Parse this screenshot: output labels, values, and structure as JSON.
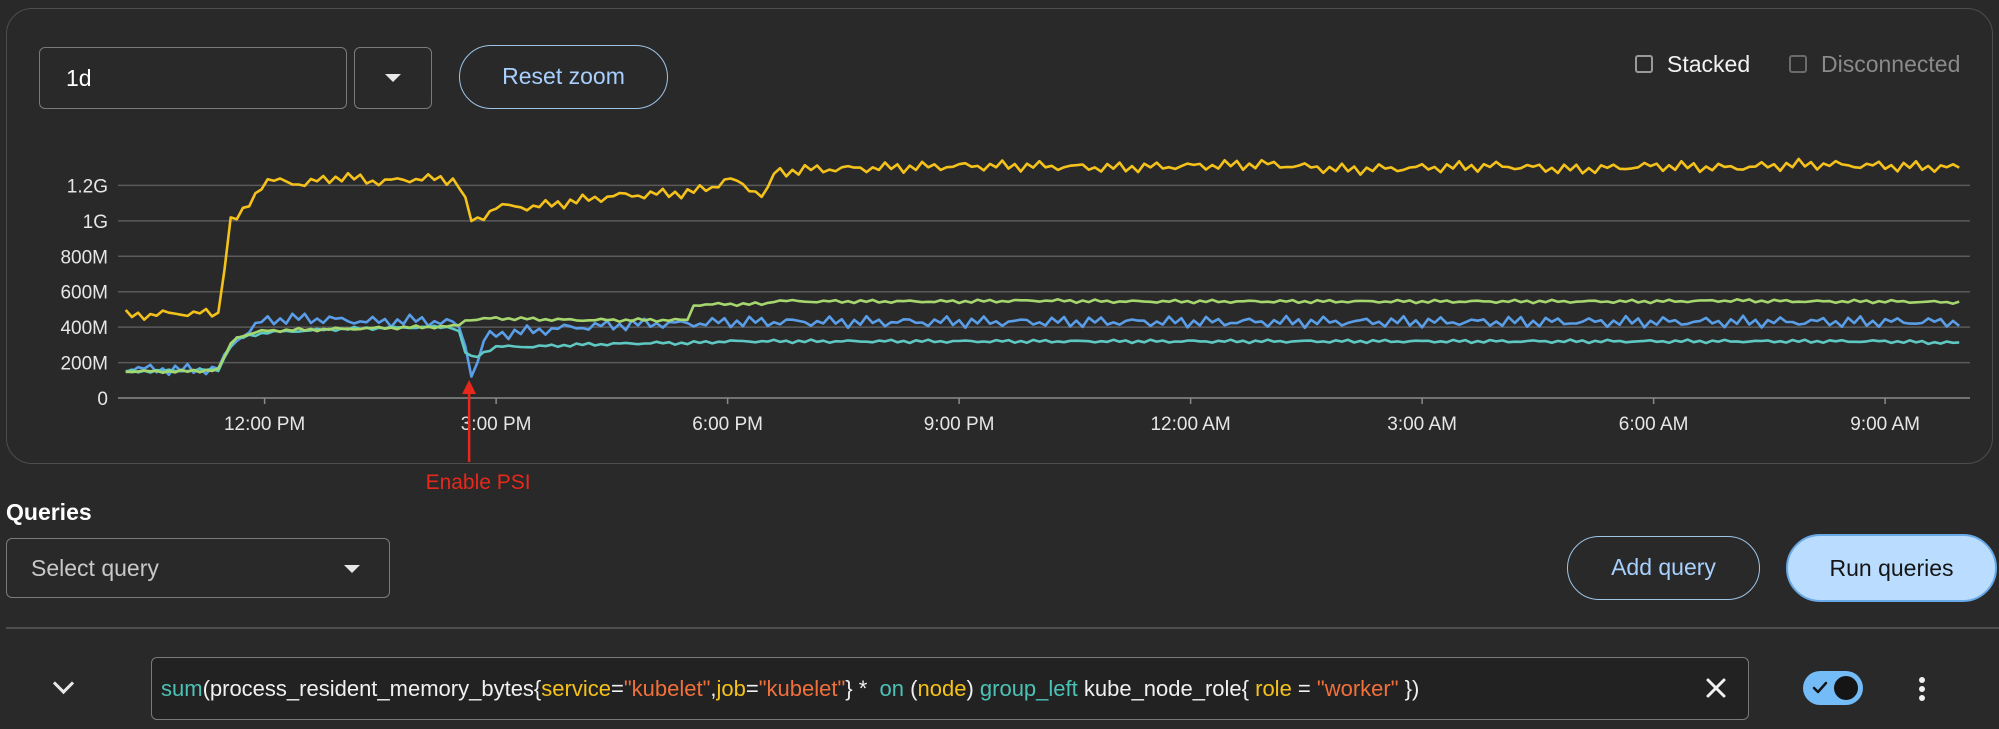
{
  "toolbar": {
    "time_range": "1d",
    "reset_zoom_label": "Reset zoom",
    "stacked_label": "Stacked",
    "disconnected_label": "Disconnected",
    "stacked_checked": false,
    "disconnected_checked": false
  },
  "chart_data": {
    "type": "line",
    "ylim": [
      0,
      1400000000
    ],
    "y_ticks": [
      0,
      200000000,
      400000000,
      600000000,
      800000000,
      1000000000,
      1200000000
    ],
    "y_tick_labels": [
      "0",
      "200M",
      "400M",
      "600M",
      "800M",
      "1G",
      "1.2G"
    ],
    "x_tick_labels": [
      "12:00 PM",
      "3:00 PM",
      "6:00 PM",
      "9:00 PM",
      "12:00 AM",
      "3:00 AM",
      "6:00 AM",
      "9:00 AM"
    ],
    "x_ticks_hours": [
      12,
      15,
      18,
      21,
      24,
      27,
      30,
      33
    ],
    "xlim_hours": [
      10.1,
      34.1
    ],
    "grid": true,
    "annotation": {
      "text": "Enable PSI",
      "x_hours": 14.65,
      "color": "#e8281b"
    },
    "series": [
      {
        "color": "#f4c21b",
        "x": [
          10.2,
          11.0,
          11.4,
          11.55,
          11.7,
          12.0,
          12.5,
          13.0,
          13.5,
          14.0,
          14.5,
          14.7,
          14.9,
          15.0,
          15.5,
          16.0,
          16.5,
          17.0,
          17.5,
          17.8,
          18.0,
          18.5,
          18.6,
          19.0,
          20.0,
          21.0,
          22.0,
          23.0,
          24.0,
          25.0,
          26.0,
          27.0,
          28.0,
          29.0,
          30.0,
          31.0,
          32.0,
          33.0,
          34.0
        ],
        "values": [
          465,
          480,
          475,
          1000,
          1030,
          1230,
          1210,
          1250,
          1220,
          1240,
          1230,
          980,
          1050,
          1080,
          1080,
          1110,
          1140,
          1150,
          1160,
          1190,
          1240,
          1140,
          1270,
          1290,
          1300,
          1310,
          1310,
          1300,
          1310,
          1320,
          1290,
          1300,
          1310,
          1290,
          1310,
          1300,
          1320,
          1310,
          1300
        ]
      },
      {
        "color": "#5a9ee8",
        "x": [
          10.2,
          11.0,
          11.4,
          11.6,
          12.0,
          12.5,
          13.0,
          13.5,
          14.0,
          14.5,
          14.6,
          14.7,
          14.85,
          15.0,
          15.5,
          16.0,
          16.5,
          17.0,
          17.5,
          18.0,
          19.0,
          20.0,
          21.0,
          22.0,
          23.0,
          24.0,
          25.0,
          26.0,
          27.0,
          28.0,
          29.0,
          30.0,
          31.0,
          32.0,
          33.0,
          34.0
        ],
        "values": [
          165,
          160,
          165,
          320,
          440,
          450,
          440,
          430,
          440,
          420,
          300,
          100,
          340,
          360,
          380,
          400,
          410,
          420,
          420,
          430,
          430,
          430,
          430,
          430,
          430,
          430,
          430,
          430,
          430,
          430,
          430,
          430,
          430,
          430,
          430,
          430
        ]
      },
      {
        "color": "#5fc8c2",
        "x": [
          10.2,
          11.0,
          11.4,
          11.6,
          12.0,
          12.5,
          13.0,
          13.5,
          14.0,
          14.5,
          14.6,
          14.7,
          14.85,
          15.0,
          15.5,
          16.0,
          16.5,
          17.0,
          17.5,
          18.0,
          19.0,
          20.0,
          21.0,
          22.0,
          23.0,
          24.0,
          25.0,
          26.0,
          27.0,
          28.0,
          29.0,
          30.0,
          31.0,
          32.0,
          33.0,
          34.0
        ],
        "values": [
          150,
          155,
          160,
          330,
          370,
          380,
          390,
          395,
          400,
          400,
          260,
          220,
          260,
          290,
          290,
          300,
          305,
          310,
          310,
          320,
          320,
          320,
          320,
          320,
          320,
          320,
          320,
          320,
          320,
          320,
          320,
          320,
          320,
          320,
          320,
          310
        ]
      },
      {
        "color": "#a6d66e",
        "x": [
          10.2,
          11.0,
          11.4,
          11.6,
          12.0,
          12.5,
          13.0,
          13.5,
          14.0,
          14.5,
          14.6,
          15.0,
          15.5,
          16.0,
          16.5,
          17.0,
          17.5,
          17.55,
          18.0,
          18.5,
          18.6,
          19.0,
          20.0,
          21.0,
          22.0,
          23.0,
          24.0,
          25.0,
          26.0,
          27.0,
          28.0,
          29.0,
          30.0,
          31.0,
          32.0,
          33.0,
          34.0
        ],
        "values": [
          150,
          150,
          160,
          340,
          380,
          385,
          390,
          395,
          400,
          405,
          440,
          450,
          445,
          440,
          440,
          440,
          440,
          525,
          530,
          530,
          550,
          545,
          545,
          545,
          550,
          545,
          545,
          545,
          545,
          545,
          545,
          545,
          545,
          550,
          545,
          545,
          540
        ]
      }
    ]
  },
  "queries": {
    "label": "Queries",
    "select_placeholder": "Select query",
    "add_label": "Add query",
    "run_label": "Run queries"
  },
  "query_row": {
    "tokens": {
      "t1": "sum",
      "t2": "(process_resident_memory_bytes{",
      "t3": "service",
      "t4": "=",
      "t5": "\"kubelet\"",
      "t6": ",",
      "t7": "job",
      "t8": "=",
      "t9": "\"kubelet\"",
      "t10": "} *  ",
      "t11": "on",
      "t12": " (",
      "t13": "node",
      "t14": ") ",
      "t15": "group_left",
      "t16": " kube_node_role{ ",
      "t17": "role",
      "t18": " = ",
      "t19": "\"worker\"",
      "t20": " })"
    },
    "enabled": true
  }
}
